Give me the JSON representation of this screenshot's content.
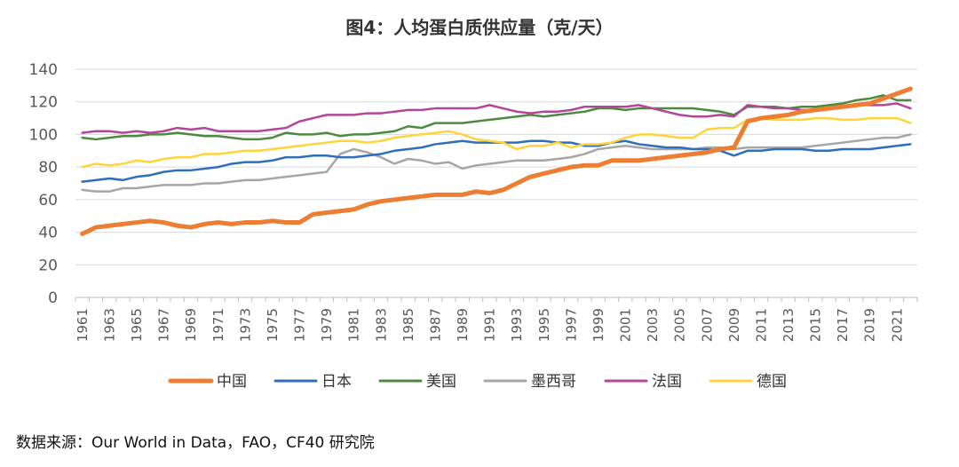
{
  "chart_data": {
    "type": "line",
    "title": "图4：人均蛋白质供应量（克/天）",
    "xlabel": "",
    "ylabel": "",
    "ylim": [
      0,
      140
    ],
    "yticks": [
      0,
      20,
      40,
      60,
      80,
      100,
      120,
      140
    ],
    "x": [
      1961,
      1962,
      1963,
      1964,
      1965,
      1966,
      1967,
      1968,
      1969,
      1970,
      1971,
      1972,
      1973,
      1974,
      1975,
      1976,
      1977,
      1978,
      1979,
      1980,
      1981,
      1982,
      1983,
      1984,
      1985,
      1986,
      1987,
      1988,
      1989,
      1990,
      1991,
      1992,
      1993,
      1994,
      1995,
      1996,
      1997,
      1998,
      1999,
      2000,
      2001,
      2002,
      2003,
      2004,
      2005,
      2006,
      2007,
      2008,
      2009,
      2010,
      2011,
      2012,
      2013,
      2014,
      2015,
      2016,
      2017,
      2018,
      2019,
      2020,
      2021,
      2022
    ],
    "xtick_labels": [
      "1961",
      "1963",
      "1965",
      "1967",
      "1969",
      "1971",
      "1973",
      "1975",
      "1977",
      "1979",
      "1981",
      "1983",
      "1985",
      "1987",
      "1989",
      "1991",
      "1993",
      "1995",
      "1997",
      "1999",
      "2001",
      "2003",
      "2005",
      "2007",
      "2009",
      "2011",
      "2013",
      "2015",
      "2017",
      "2019",
      "2021"
    ],
    "grid": "horizontal",
    "legend_position": "bottom",
    "series": [
      {
        "name": "中国",
        "color": "#ED7D31",
        "values": [
          39,
          43,
          44,
          45,
          46,
          47,
          46,
          44,
          43,
          45,
          46,
          45,
          46,
          46,
          47,
          46,
          46,
          51,
          52,
          53,
          54,
          57,
          59,
          60,
          61,
          62,
          63,
          63,
          63,
          65,
          64,
          66,
          70,
          74,
          76,
          78,
          80,
          81,
          81,
          84,
          84,
          84,
          85,
          86,
          87,
          88,
          89,
          91,
          92,
          108,
          110,
          111,
          112,
          114,
          115,
          116,
          117,
          118,
          119,
          122,
          125,
          128
        ]
      },
      {
        "name": "日本",
        "color": "#2E6EBA",
        "values": [
          71,
          72,
          73,
          72,
          74,
          75,
          77,
          78,
          78,
          79,
          80,
          82,
          83,
          83,
          84,
          86,
          86,
          87,
          87,
          86,
          86,
          87,
          88,
          90,
          91,
          92,
          94,
          95,
          96,
          95,
          95,
          95,
          95,
          96,
          96,
          95,
          95,
          93,
          93,
          95,
          96,
          94,
          93,
          92,
          92,
          91,
          91,
          90,
          87,
          90,
          90,
          91,
          91,
          91,
          90,
          90,
          91,
          91,
          91,
          92,
          93,
          94
        ]
      },
      {
        "name": "美国",
        "color": "#4C8B3F",
        "values": [
          98,
          97,
          98,
          99,
          99,
          100,
          100,
          101,
          100,
          99,
          99,
          98,
          97,
          97,
          98,
          101,
          100,
          100,
          101,
          99,
          100,
          100,
          101,
          102,
          105,
          104,
          107,
          107,
          107,
          108,
          109,
          110,
          111,
          112,
          111,
          112,
          113,
          114,
          116,
          116,
          115,
          116,
          116,
          116,
          116,
          116,
          115,
          114,
          112,
          117,
          117,
          117,
          116,
          117,
          117,
          118,
          119,
          121,
          122,
          124,
          121,
          121
        ]
      },
      {
        "name": "墨西哥",
        "color": "#A6A6A6",
        "values": [
          66,
          65,
          65,
          67,
          67,
          68,
          69,
          69,
          69,
          70,
          70,
          71,
          72,
          72,
          73,
          74,
          75,
          76,
          77,
          88,
          91,
          89,
          86,
          82,
          85,
          84,
          82,
          83,
          79,
          81,
          82,
          83,
          84,
          84,
          84,
          85,
          86,
          88,
          91,
          92,
          93,
          92,
          91,
          91,
          91,
          91,
          92,
          92,
          91,
          92,
          92,
          92,
          92,
          92,
          93,
          94,
          95,
          96,
          97,
          98,
          98,
          100
        ]
      },
      {
        "name": "法国",
        "color": "#B4469A",
        "values": [
          101,
          102,
          102,
          101,
          102,
          101,
          102,
          104,
          103,
          104,
          102,
          102,
          102,
          102,
          103,
          104,
          108,
          110,
          112,
          112,
          112,
          113,
          113,
          114,
          115,
          115,
          116,
          116,
          116,
          116,
          118,
          116,
          114,
          113,
          114,
          114,
          115,
          117,
          117,
          117,
          117,
          118,
          116,
          114,
          112,
          111,
          111,
          112,
          111,
          118,
          117,
          116,
          116,
          115,
          115,
          116,
          117,
          118,
          118,
          118,
          119,
          116
        ]
      },
      {
        "name": "德国",
        "color": "#FFD43B",
        "values": [
          80,
          82,
          81,
          82,
          84,
          83,
          85,
          86,
          86,
          88,
          88,
          89,
          90,
          90,
          91,
          92,
          93,
          94,
          95,
          96,
          96,
          95,
          96,
          98,
          99,
          100,
          101,
          102,
          100,
          97,
          96,
          95,
          91,
          93,
          93,
          95,
          92,
          94,
          94,
          95,
          98,
          100,
          100,
          99,
          98,
          98,
          103,
          104,
          104,
          109,
          110,
          109,
          109,
          109,
          110,
          110,
          109,
          109,
          110,
          110,
          110,
          107
        ]
      }
    ]
  },
  "source_text": "数据来源：Our World in Data，FAO，CF40 研究院"
}
